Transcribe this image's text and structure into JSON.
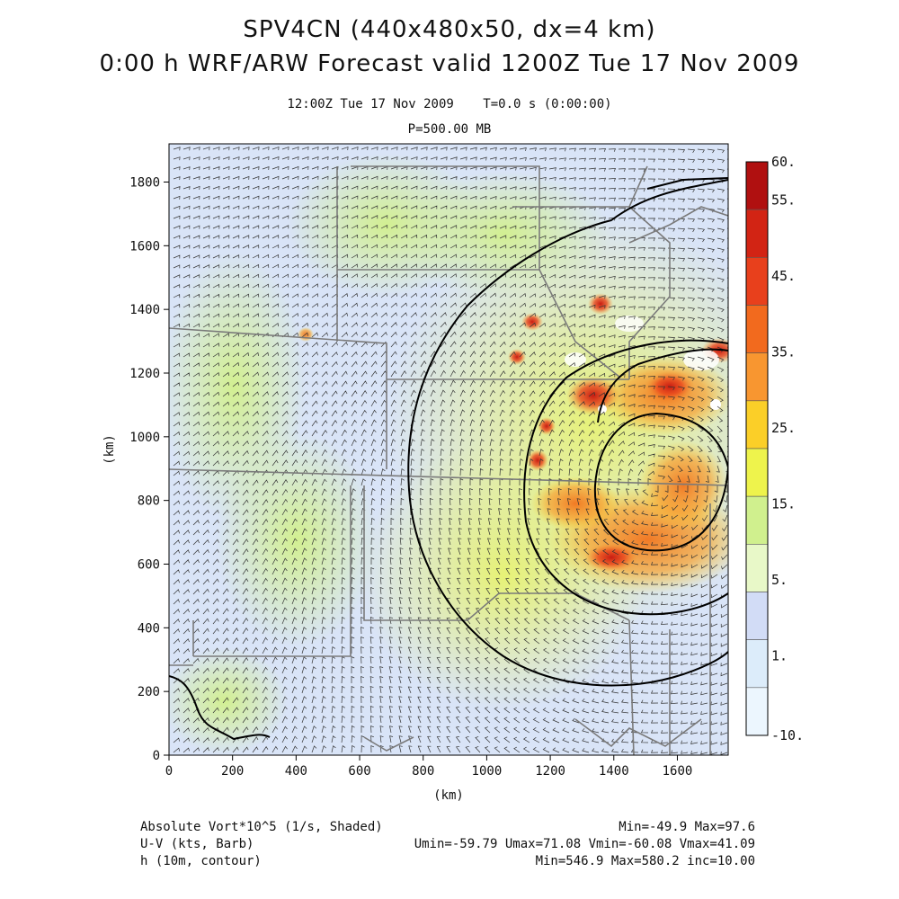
{
  "header": {
    "title_line1": "SPV4CN (440x480x50, dx=4 km)",
    "title_line2": "0:00 h WRF/ARW Forecast valid 1200Z Tue 17 Nov 2009",
    "valid_time": "12:00Z Tue 17 Nov 2009",
    "model_time": "T=0.0 s (0:00:00)",
    "pressure_level": "P=500.00 MB"
  },
  "axes": {
    "x_label": "(km)",
    "y_label": "(km)",
    "x_ticks": [
      "0",
      "200",
      "400",
      "600",
      "800",
      "1000",
      "1200",
      "1400",
      "1600"
    ],
    "y_ticks": [
      "0",
      "200",
      "400",
      "600",
      "800",
      "1000",
      "1200",
      "1400",
      "1600",
      "1800"
    ],
    "x_range_km": [
      0,
      1760
    ],
    "y_range_km": [
      0,
      1920
    ]
  },
  "colorbar": {
    "labels": [
      "60.",
      "55.",
      "45.",
      "35.",
      "25.",
      "15.",
      "5.",
      "1.",
      "-10."
    ],
    "colors": [
      "#b01010",
      "#d22414",
      "#e8401c",
      "#f26a1e",
      "#f89630",
      "#fbcf28",
      "#eef34c",
      "#d0f08e",
      "#e8f8c8",
      "#d2dcf6",
      "#dcecfa",
      "#ecf6fe"
    ]
  },
  "legend": {
    "field1_label": "Absolute Vort*10^5 (1/s, Shaded)",
    "field1_stats": "Min=-49.9 Max=97.6",
    "field2_label": "U-V (kts, Barb)",
    "field2_stats": "Umin=-59.79 Umax=71.08 Vmin=-60.08 Vmax=41.09",
    "field3_label": "h (10m, contour)",
    "field3_stats": "Min=546.9 Max=580.2 inc=10.00"
  },
  "map_style": {
    "background_color": "#d9e4f7",
    "contour_color": "#000000",
    "state_border_color": "#7a7a7a",
    "barb_color": "#333333"
  }
}
